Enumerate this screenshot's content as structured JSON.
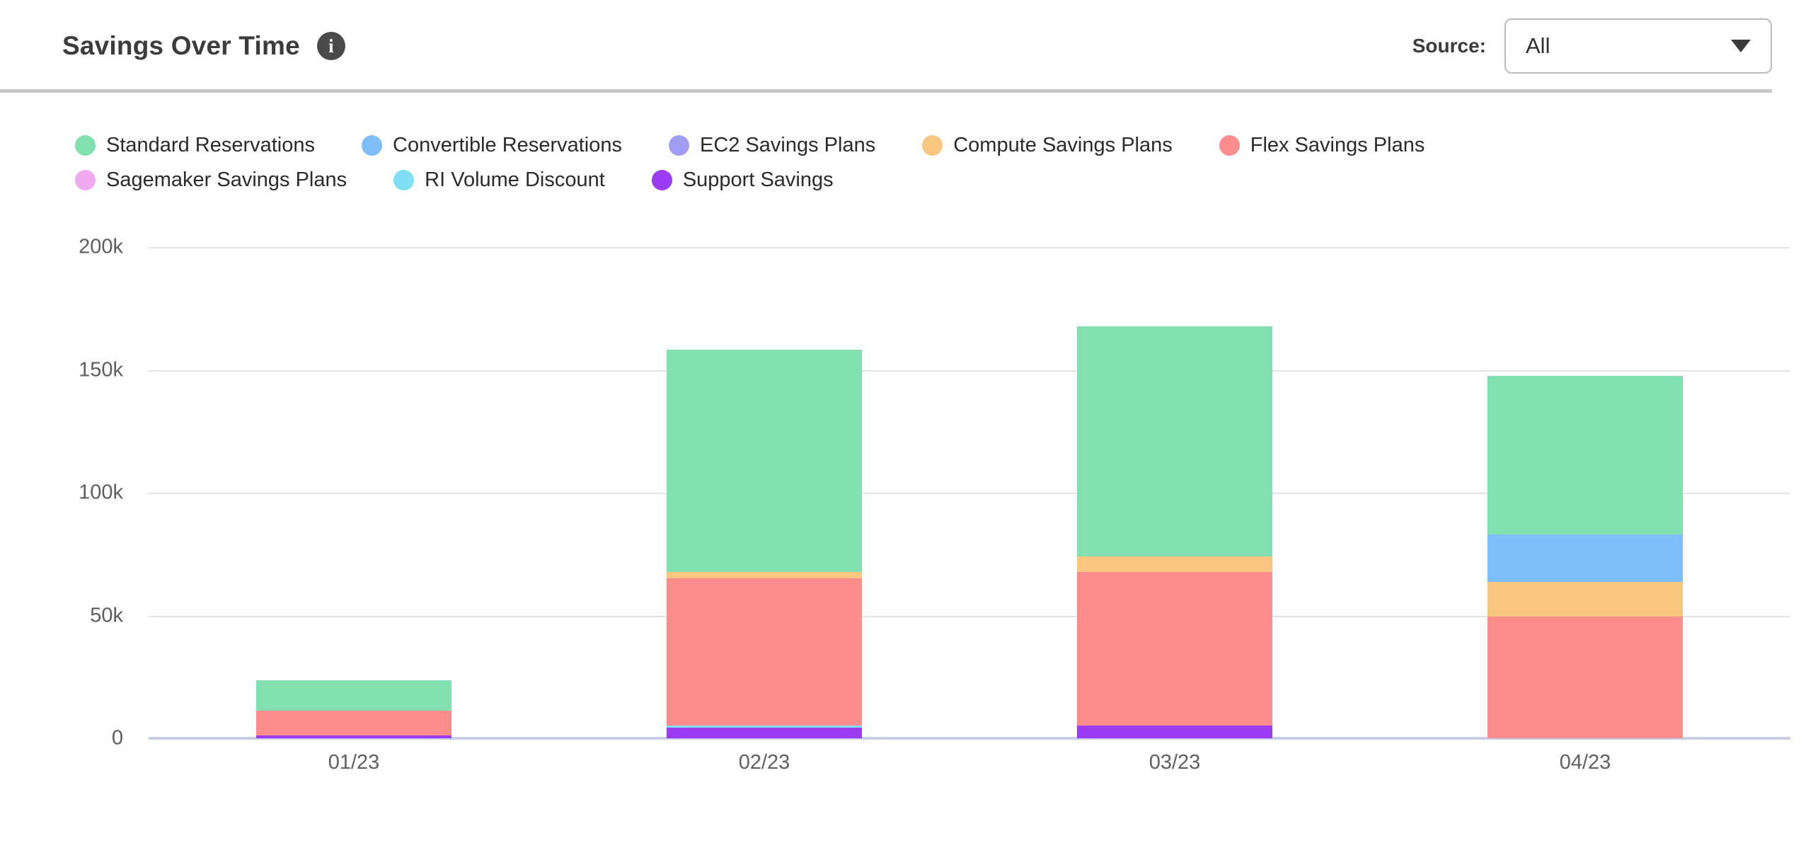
{
  "header": {
    "title": "Savings Over Time",
    "info_glyph": "i",
    "source_label": "Source:",
    "source_value": "All"
  },
  "legend": {
    "items": [
      {
        "label": "Standard Reservations",
        "color": "#81dfb0"
      },
      {
        "label": "Convertible Reservations",
        "color": "#7dbefb"
      },
      {
        "label": "EC2 Savings Plans",
        "color": "#a39cf5"
      },
      {
        "label": "Compute Savings Plans",
        "color": "#f8c67e"
      },
      {
        "label": "Flex Savings Plans",
        "color": "#fd8c8c"
      },
      {
        "label": "Sagemaker Savings Plans",
        "color": "#efa9ef"
      },
      {
        "label": "RI Volume Discount",
        "color": "#7fe0f5"
      },
      {
        "label": "Support Savings",
        "color": "#9b3bf2"
      }
    ]
  },
  "chart_data": {
    "type": "bar",
    "stacked": true,
    "title": "Savings Over Time",
    "categories": [
      "01/23",
      "02/23",
      "03/23",
      "04/23"
    ],
    "series": [
      {
        "name": "Standard Reservations",
        "color": "#81dfb0",
        "values": [
          12200,
          90500,
          93600,
          64500
        ]
      },
      {
        "name": "Convertible Reservations",
        "color": "#7dbefb",
        "values": [
          0,
          0,
          0,
          19400
        ]
      },
      {
        "name": "EC2 Savings Plans",
        "color": "#a39cf5",
        "values": [
          0,
          0,
          0,
          0
        ]
      },
      {
        "name": "Compute Savings Plans",
        "color": "#f8c67e",
        "values": [
          0,
          2600,
          6400,
          14000
        ]
      },
      {
        "name": "Flex Savings Plans",
        "color": "#fd8c8c",
        "values": [
          10100,
          59900,
          62600,
          49600
        ]
      },
      {
        "name": "Sagemaker Savings Plans",
        "color": "#efa9ef",
        "values": [
          0,
          0,
          0,
          0
        ]
      },
      {
        "name": "RI Volume Discount",
        "color": "#7fe0f5",
        "values": [
          0,
          1000,
          0,
          0
        ]
      },
      {
        "name": "Support Savings",
        "color": "#9b3bf2",
        "values": [
          1200,
          4300,
          5200,
          0
        ]
      }
    ],
    "stack_totals": [
      23500,
      158300,
      167800,
      147500
    ],
    "stack_order_note": "bottom-to-top is reverse of legend order (Support Savings at bottom, Standard Reservations on top)",
    "xlabel": "",
    "ylabel": "",
    "ylim": [
      0,
      200000
    ],
    "ytick_labels": [
      "0",
      "50k",
      "100k",
      "150k",
      "200k"
    ],
    "grid": true,
    "legend_position": "top"
  }
}
